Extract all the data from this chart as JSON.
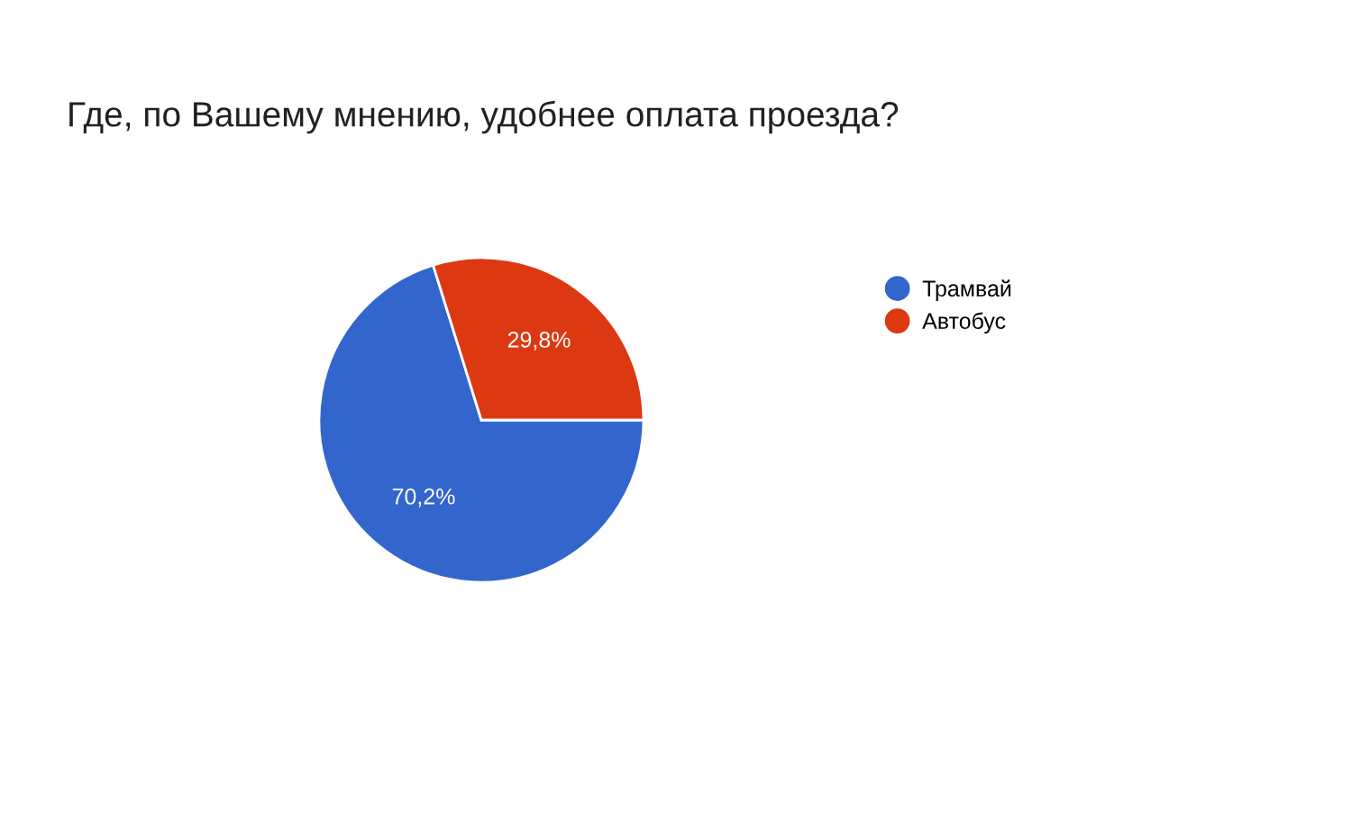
{
  "chart_data": {
    "type": "pie",
    "title": "Где, по Вашему мнению, удобнее оплата проезда?",
    "categories": [
      "Трамвай",
      "Автобус"
    ],
    "values": [
      70.2,
      29.8
    ],
    "colors": [
      "#3366cc",
      "#dc3912"
    ],
    "value_labels": [
      "70,2%",
      "29,8%"
    ],
    "legend": "right"
  }
}
